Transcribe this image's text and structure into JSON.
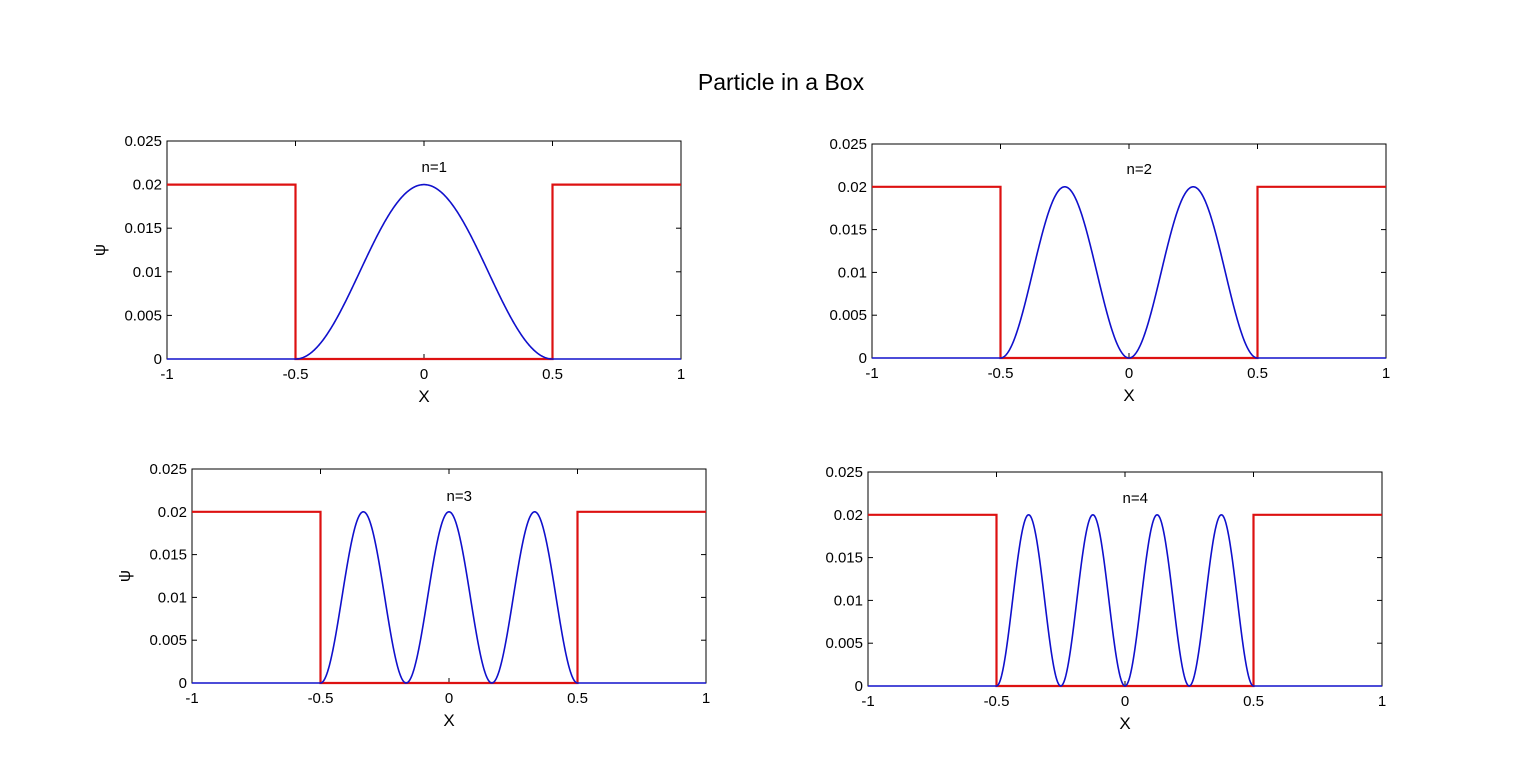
{
  "figure_title": "Particle in a Box",
  "colors": {
    "wavefunction": "#1010cc",
    "potential": "#dd1111",
    "axes": "#000000"
  },
  "chart_data": [
    {
      "type": "line",
      "annotation": "n=1",
      "n": 1,
      "xlabel": "X",
      "ylabel": "ψ",
      "xlim": [
        -1,
        1
      ],
      "ylim": [
        0,
        0.025
      ],
      "x_ticks": [
        "-1",
        "-0.5",
        "0",
        "0.5",
        "1"
      ],
      "y_ticks": [
        "0",
        "0.005",
        "0.01",
        "0.015",
        "0.02",
        "0.025"
      ],
      "grid": false,
      "series": [
        {
          "color": "#1010cc",
          "function": "0.02*sin^2(n*pi*(x+0.5)) for |x|<=0.5, else 0",
          "amplitude": 0.02
        },
        {
          "color": "#dd1111",
          "function": "0.02 for |x|>0.5, else 0",
          "x": [
            -1,
            -0.5,
            -0.5,
            0.5,
            0.5,
            1
          ],
          "y": [
            0.02,
            0.02,
            0,
            0,
            0.02,
            0.02
          ]
        }
      ]
    },
    {
      "type": "line",
      "annotation": "n=2",
      "n": 2,
      "xlabel": "X",
      "ylabel": "",
      "xlim": [
        -1,
        1
      ],
      "ylim": [
        0,
        0.025
      ],
      "x_ticks": [
        "-1",
        "-0.5",
        "0",
        "0.5",
        "1"
      ],
      "y_ticks": [
        "0",
        "0.005",
        "0.01",
        "0.015",
        "0.02",
        "0.025"
      ],
      "grid": false,
      "series": [
        {
          "color": "#1010cc",
          "function": "0.02*sin^2(n*pi*(x+0.5)) for |x|<=0.5, else 0",
          "amplitude": 0.02
        },
        {
          "color": "#dd1111",
          "function": "0.02 for |x|>0.5, else 0",
          "x": [
            -1,
            -0.5,
            -0.5,
            0.5,
            0.5,
            1
          ],
          "y": [
            0.02,
            0.02,
            0,
            0,
            0.02,
            0.02
          ]
        }
      ]
    },
    {
      "type": "line",
      "annotation": "n=3",
      "n": 3,
      "xlabel": "X",
      "ylabel": "ψ",
      "xlim": [
        -1,
        1
      ],
      "ylim": [
        0,
        0.025
      ],
      "x_ticks": [
        "-1",
        "-0.5",
        "0",
        "0.5",
        "1"
      ],
      "y_ticks": [
        "0",
        "0.005",
        "0.01",
        "0.015",
        "0.02",
        "0.025"
      ],
      "grid": false,
      "series": [
        {
          "color": "#1010cc",
          "function": "0.02*sin^2(n*pi*(x+0.5)) for |x|<=0.5, else 0",
          "amplitude": 0.02
        },
        {
          "color": "#dd1111",
          "function": "0.02 for |x|>0.5, else 0",
          "x": [
            -1,
            -0.5,
            -0.5,
            0.5,
            0.5,
            1
          ],
          "y": [
            0.02,
            0.02,
            0,
            0,
            0.02,
            0.02
          ]
        }
      ]
    },
    {
      "type": "line",
      "annotation": "n=4",
      "n": 4,
      "xlabel": "X",
      "ylabel": "",
      "xlim": [
        -1,
        1
      ],
      "ylim": [
        0,
        0.025
      ],
      "x_ticks": [
        "-1",
        "-0.5",
        "0",
        "0.5",
        "1"
      ],
      "y_ticks": [
        "0",
        "0.005",
        "0.01",
        "0.015",
        "0.02",
        "0.025"
      ],
      "grid": false,
      "series": [
        {
          "color": "#1010cc",
          "function": "0.02*sin^2(n*pi*(x+0.5)) for |x|<=0.5, else 0",
          "amplitude": 0.02
        },
        {
          "color": "#dd1111",
          "function": "0.02 for |x|>0.5, else 0",
          "x": [
            -1,
            -0.5,
            -0.5,
            0.5,
            0.5,
            1
          ],
          "y": [
            0.02,
            0.02,
            0,
            0,
            0.02,
            0.02
          ]
        }
      ]
    }
  ]
}
